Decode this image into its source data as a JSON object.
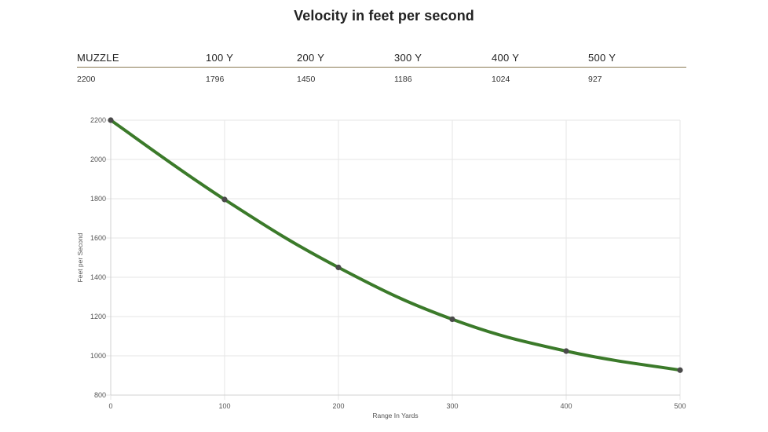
{
  "title": "Velocity in feet per second",
  "table": {
    "headers": [
      "MUZZLE",
      "100 Y",
      "200 Y",
      "300 Y",
      "400 Y",
      "500 Y"
    ],
    "values": [
      "2200",
      "1796",
      "1450",
      "1186",
      "1024",
      "927"
    ]
  },
  "chart_data": {
    "type": "line",
    "x": [
      0,
      100,
      200,
      300,
      400,
      500
    ],
    "series": [
      {
        "values": [
          2200,
          1796,
          1450,
          1186,
          1024,
          927
        ]
      }
    ],
    "xlabel": "Range In Yards",
    "ylabel": "Feet per Second",
    "xlim": [
      0,
      500
    ],
    "ylim": [
      800,
      2200
    ],
    "x_ticks": [
      0,
      100,
      200,
      300,
      400,
      500
    ],
    "y_ticks": [
      800,
      1000,
      1200,
      1400,
      1600,
      1800,
      2000,
      2200
    ],
    "grid": true,
    "line_color": "#3b7a2a",
    "marker_color": "#4a4a4a"
  }
}
